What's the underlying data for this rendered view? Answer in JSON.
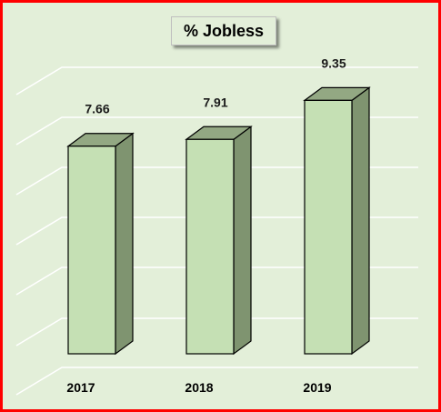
{
  "chart_data": {
    "type": "bar",
    "title": "% Jobless",
    "categories": [
      "2017",
      "2018",
      "2019"
    ],
    "values": [
      7.66,
      7.91,
      9.35
    ],
    "xlabel": "",
    "ylabel": "",
    "grid": true,
    "legend": "none",
    "style": "3d-column",
    "colors": {
      "bar_front": "#c5e0b4",
      "bar_side": "#7f9470",
      "bar_top": "#93a883",
      "bar_edge": "#000000",
      "background": "#e3efd9",
      "border": "#ff0000",
      "grid": "#ffffff"
    }
  }
}
